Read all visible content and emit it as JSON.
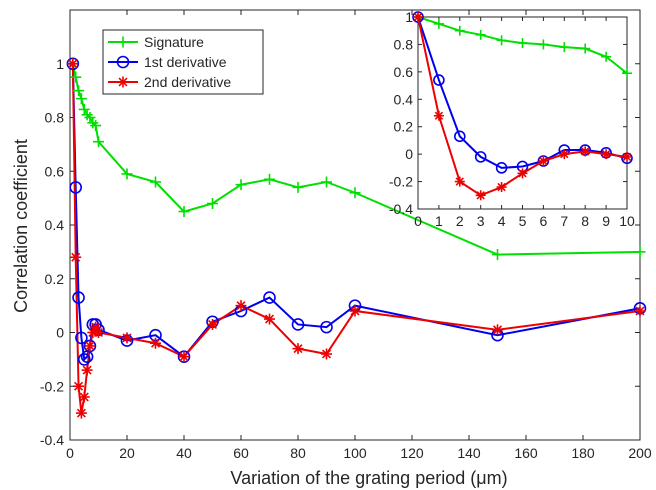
{
  "chart_data": {
    "type": "line",
    "xlabel": "Variation of the grating period (μm)",
    "ylabel": "Correlation coefficient",
    "xlim": [
      0,
      200
    ],
    "ylim": [
      -0.4,
      1.2
    ],
    "xticks": [
      "0",
      "20",
      "40",
      "60",
      "80",
      "100",
      "120",
      "140",
      "160",
      "180",
      "200"
    ],
    "yticks": [
      "-0.4",
      "-0.2",
      "0",
      "0.2",
      "0.4",
      "0.6",
      "0.8",
      "1"
    ],
    "grid": false,
    "legend_position": "top-left",
    "series": [
      {
        "name": "Signature",
        "color": "#00e000",
        "marker": "plus",
        "x": [
          1,
          2,
          3,
          4,
          5,
          6,
          7,
          8,
          9,
          10,
          20,
          30,
          40,
          50,
          60,
          70,
          80,
          90,
          100,
          150,
          200
        ],
        "y": [
          1.0,
          0.95,
          0.9,
          0.87,
          0.83,
          0.81,
          0.8,
          0.78,
          0.77,
          0.71,
          0.59,
          0.56,
          0.45,
          0.48,
          0.55,
          0.57,
          0.54,
          0.56,
          0.52,
          0.29,
          0.3
        ]
      },
      {
        "name": "1st derivative",
        "color": "#0000ee",
        "marker": "circle",
        "x": [
          1,
          2,
          3,
          4,
          5,
          6,
          7,
          8,
          9,
          10,
          20,
          30,
          40,
          50,
          60,
          70,
          80,
          90,
          100,
          150,
          200
        ],
        "y": [
          1.0,
          0.54,
          0.13,
          -0.02,
          -0.1,
          -0.09,
          -0.05,
          0.03,
          0.03,
          0.01,
          -0.03,
          -0.01,
          -0.09,
          0.04,
          0.08,
          0.13,
          0.03,
          0.02,
          0.1,
          -0.01,
          0.09
        ]
      },
      {
        "name": "2nd derivative",
        "color": "#ee0000",
        "marker": "star",
        "x": [
          1,
          2,
          3,
          4,
          5,
          6,
          7,
          8,
          9,
          10,
          20,
          30,
          40,
          50,
          60,
          70,
          80,
          90,
          100,
          150,
          200
        ],
        "y": [
          1.0,
          0.28,
          -0.2,
          -0.3,
          -0.24,
          -0.14,
          -0.05,
          0.0,
          0.02,
          0.0,
          -0.02,
          -0.04,
          -0.09,
          0.03,
          0.1,
          0.05,
          -0.06,
          -0.08,
          0.08,
          0.01,
          0.08
        ]
      }
    ],
    "inset": {
      "xlim": [
        0,
        10
      ],
      "ylim": [
        -0.4,
        1.0
      ],
      "xticks": [
        "0",
        "1",
        "2",
        "3",
        "4",
        "5",
        "6",
        "7",
        "8",
        "9",
        "10"
      ],
      "yticks": [
        "-0.4",
        "-0.2",
        "0",
        "0.2",
        "0.4",
        "0.6",
        "0.8",
        "1"
      ]
    }
  }
}
